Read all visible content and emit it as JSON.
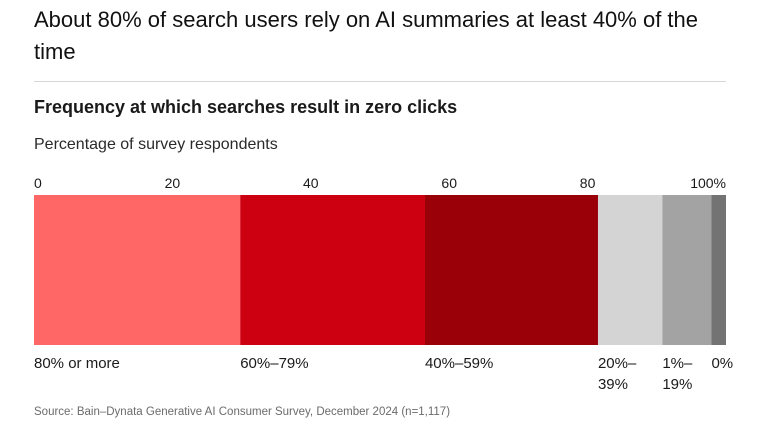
{
  "headline": "About 80% of search users rely on AI summaries at least 40% of the time",
  "chart_data": {
    "type": "bar",
    "orientation": "horizontal-stacked",
    "title": "Frequency at which searches result in zero clicks",
    "subtitle": "Percentage of survey respondents",
    "xlim": [
      0,
      100
    ],
    "x_ticks": [
      "0",
      "20",
      "40",
      "60",
      "80",
      "100%"
    ],
    "x_tick_values": [
      0,
      20,
      40,
      60,
      80,
      100
    ],
    "grid": false,
    "series": [
      {
        "name": "80% or more",
        "value": 29.8,
        "color": "#ff6666"
      },
      {
        "name": "60%–79%",
        "value": 26.7,
        "color": "#cc0011"
      },
      {
        "name": "40%–59%",
        "value": 25.0,
        "color": "#990008"
      },
      {
        "name": "20%–39%",
        "value": 9.3,
        "color": "#d4d4d4"
      },
      {
        "name": "1%–19%",
        "value": 7.1,
        "color": "#a3a3a3"
      },
      {
        "name": "0%",
        "value": 2.1,
        "color": "#737373"
      }
    ],
    "category_label_lines": [
      [
        "80% or more"
      ],
      [
        "60%–79%"
      ],
      [
        "40%–59%"
      ],
      [
        "20%–",
        "39%"
      ],
      [
        "1%–",
        "19%"
      ],
      [
        "0%"
      ]
    ]
  },
  "source": "Source: Bain–Dynata Generative AI Consumer Survey, December 2024 (n=1,117)"
}
